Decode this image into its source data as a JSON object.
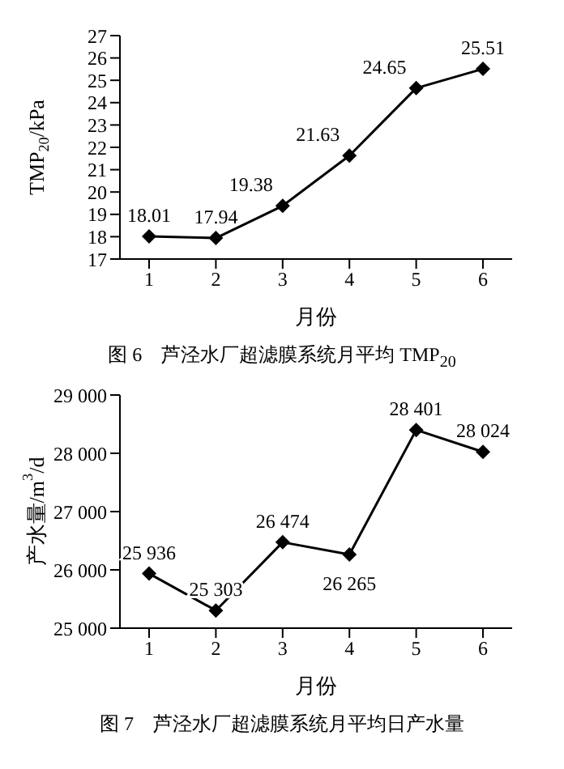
{
  "chart_data": [
    {
      "type": "line",
      "title": "图 6　芦泾水厂超滤膜系统月平均 TMP$_{20}$",
      "xlabel": "月份",
      "ylabel": "TMP$_{20}$/kPa",
      "categories": [
        "1",
        "2",
        "3",
        "4",
        "5",
        "6"
      ],
      "series": [
        {
          "color": "#000000",
          "values": [
            18.01,
            17.94,
            19.38,
            21.63,
            24.65,
            25.51
          ]
        }
      ],
      "ylim": [
        17,
        27
      ],
      "yticks": [
        17,
        18,
        19,
        20,
        21,
        22,
        23,
        24,
        25,
        26,
        27
      ],
      "marker": "diamond",
      "line_style": "solid",
      "grid": false,
      "legend": false,
      "data_labels": true
    },
    {
      "type": "line",
      "title": "图 7　芦泾水厂超滤膜系统月平均日产水量",
      "xlabel": "月份",
      "ylabel": "产水量/m$^{3}$/d",
      "categories": [
        "1",
        "2",
        "3",
        "4",
        "5",
        "6"
      ],
      "series": [
        {
          "color": "#000000",
          "values": [
            25936,
            25303,
            26474,
            26265,
            28401,
            28024
          ],
          "value_labels": [
            "25 936",
            "25 303",
            "26 474",
            "26 265",
            "28 401",
            "28 024"
          ]
        }
      ],
      "ylim": [
        25000,
        29000
      ],
      "yticks": [
        {
          "value": 25000,
          "label": "25 000"
        },
        {
          "value": 26000,
          "label": "26 000"
        },
        {
          "value": 27000,
          "label": "27 000"
        },
        {
          "value": 28000,
          "label": "28 000"
        },
        {
          "value": 29000,
          "label": "29 000"
        }
      ],
      "marker": "diamond",
      "line_style": "solid",
      "grid": false,
      "legend": false
    }
  ]
}
